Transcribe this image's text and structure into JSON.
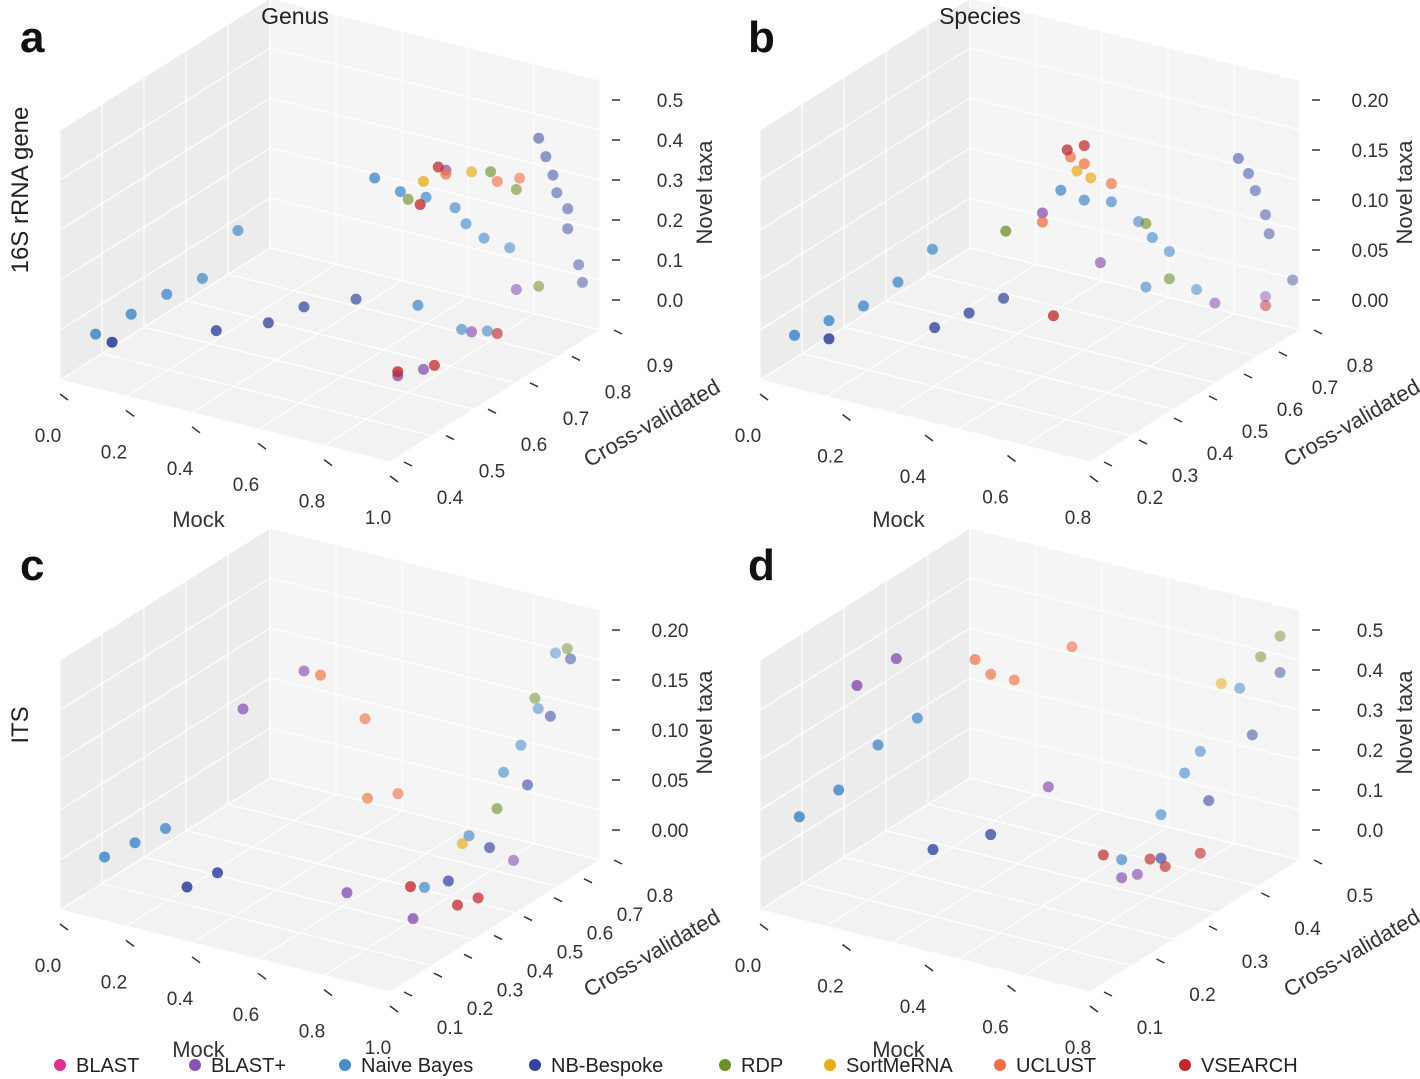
{
  "figure": {
    "column_titles": [
      "Genus",
      "Species"
    ],
    "row_titles": [
      "16S rRNA gene",
      "ITS"
    ]
  },
  "legend": [
    {
      "name": "BLAST",
      "color": "#e0318f"
    },
    {
      "name": "BLAST+",
      "color": "#8a55b2"
    },
    {
      "name": "Naive Bayes",
      "color": "#4a8ccb"
    },
    {
      "name": "NB-Bespoke",
      "color": "#33449e"
    },
    {
      "name": "RDP",
      "color": "#6f8f2a"
    },
    {
      "name": "SortMeRNA",
      "color": "#e7ad1f"
    },
    {
      "name": "UCLUST",
      "color": "#ee7145"
    },
    {
      "name": "VSEARCH",
      "color": "#c0282d"
    }
  ],
  "chart_data": [
    {
      "panel": "a",
      "type": "scatter3d",
      "title": "Genus",
      "row_label": "16S rRNA gene",
      "xlabel": "Mock",
      "ylabel": "Cross-validated",
      "zlabel": "Novel taxa",
      "x_ticks": [
        "0.0",
        "0.2",
        "0.4",
        "0.6",
        "0.8",
        "1.0"
      ],
      "y_ticks": [
        "0.4",
        "0.5",
        "0.6",
        "0.7",
        "0.8",
        "0.9"
      ],
      "z_ticks": [
        "0.0",
        "0.1",
        "0.2",
        "0.3",
        "0.4",
        "0.5"
      ],
      "xlim": [
        0,
        1
      ],
      "ylim": [
        0.4,
        0.95
      ],
      "zlim": [
        0,
        0.5
      ],
      "series": [
        {
          "name": "Naive Bayes",
          "points": [
            [
              0.05,
              0.45,
              0.02
            ],
            [
              0.1,
              0.5,
              0.05
            ],
            [
              0.15,
              0.55,
              0.08
            ],
            [
              0.2,
              0.6,
              0.1
            ],
            [
              0.25,
              0.65,
              0.2
            ],
            [
              0.78,
              0.55,
              0.5
            ],
            [
              0.8,
              0.6,
              0.44
            ],
            [
              0.82,
              0.65,
              0.4
            ],
            [
              0.85,
              0.7,
              0.35
            ],
            [
              0.86,
              0.72,
              0.3
            ],
            [
              0.88,
              0.75,
              0.25
            ],
            [
              0.9,
              0.8,
              0.2
            ],
            [
              0.83,
              0.62,
              0.15
            ],
            [
              0.87,
              0.7,
              0.05
            ],
            [
              0.89,
              0.75,
              0.02
            ]
          ]
        },
        {
          "name": "NB-Bespoke",
          "points": [
            [
              0.1,
              0.45,
              0.01
            ],
            [
              0.3,
              0.55,
              0.02
            ],
            [
              0.4,
              0.6,
              0.03
            ],
            [
              0.45,
              0.65,
              0.05
            ],
            [
              0.55,
              0.7,
              0.06
            ],
            [
              0.93,
              0.85,
              0.45
            ],
            [
              0.94,
              0.86,
              0.4
            ],
            [
              0.95,
              0.87,
              0.35
            ],
            [
              0.95,
              0.88,
              0.3
            ],
            [
              0.96,
              0.9,
              0.25
            ],
            [
              0.96,
              0.9,
              0.2
            ],
            [
              0.97,
              0.92,
              0.1
            ],
            [
              0.97,
              0.93,
              0.05
            ]
          ]
        },
        {
          "name": "BLAST+",
          "points": [
            [
              0.85,
              0.55,
              0.02
            ],
            [
              0.87,
              0.6,
              0.01
            ],
            [
              0.9,
              0.7,
              0.05
            ],
            [
              0.92,
              0.8,
              0.1
            ],
            [
              0.88,
              0.65,
              0.48
            ]
          ]
        },
        {
          "name": "RDP",
          "points": [
            [
              0.65,
              0.75,
              0.3
            ],
            [
              0.9,
              0.75,
              0.42
            ],
            [
              0.92,
              0.8,
              0.35
            ],
            [
              0.93,
              0.85,
              0.08
            ]
          ]
        },
        {
          "name": "SortMeRNA",
          "points": [
            [
              0.87,
              0.6,
              0.48
            ],
            [
              0.9,
              0.7,
              0.45
            ]
          ]
        },
        {
          "name": "UCLUST",
          "points": [
            [
              0.88,
              0.65,
              0.47
            ],
            [
              0.92,
              0.75,
              0.4
            ],
            [
              0.93,
              0.8,
              0.38
            ]
          ]
        },
        {
          "name": "VSEARCH",
          "points": [
            [
              0.88,
              0.63,
              0.5
            ],
            [
              0.86,
              0.6,
              0.42
            ],
            [
              0.85,
              0.55,
              0.03
            ],
            [
              0.88,
              0.62,
              0.01
            ],
            [
              0.92,
              0.75,
              0.02
            ]
          ]
        }
      ]
    },
    {
      "panel": "b",
      "type": "scatter3d",
      "title": "Species",
      "row_label": "",
      "xlabel": "Mock",
      "ylabel": "Cross-validated",
      "zlabel": "Novel taxa",
      "x_ticks": [
        "0.0",
        "0.2",
        "0.4",
        "0.6",
        "0.8"
      ],
      "y_ticks": [
        "0.2",
        "0.3",
        "0.4",
        "0.5",
        "0.6",
        "0.7",
        "0.8"
      ],
      "z_ticks": [
        "0.00",
        "0.05",
        "0.10",
        "0.15",
        "0.20"
      ],
      "xlim": [
        0,
        0.9
      ],
      "ylim": [
        0.2,
        0.85
      ],
      "zlim": [
        0,
        0.22
      ],
      "series": [
        {
          "name": "Naive Bayes",
          "points": [
            [
              0.05,
              0.25,
              0.01
            ],
            [
              0.1,
              0.3,
              0.02
            ],
            [
              0.15,
              0.35,
              0.03
            ],
            [
              0.2,
              0.4,
              0.05
            ],
            [
              0.25,
              0.45,
              0.08
            ],
            [
              0.6,
              0.45,
              0.18
            ],
            [
              0.62,
              0.5,
              0.16
            ],
            [
              0.65,
              0.55,
              0.15
            ],
            [
              0.68,
              0.6,
              0.12
            ],
            [
              0.7,
              0.62,
              0.1
            ],
            [
              0.72,
              0.65,
              0.08
            ],
            [
              0.7,
              0.6,
              0.05
            ],
            [
              0.75,
              0.7,
              0.03
            ]
          ]
        },
        {
          "name": "NB-Bespoke",
          "points": [
            [
              0.1,
              0.3,
              0.0
            ],
            [
              0.3,
              0.4,
              0.01
            ],
            [
              0.35,
              0.45,
              0.02
            ],
            [
              0.4,
              0.5,
              0.03
            ],
            [
              0.82,
              0.75,
              0.17
            ],
            [
              0.83,
              0.77,
              0.15
            ],
            [
              0.84,
              0.78,
              0.13
            ],
            [
              0.85,
              0.8,
              0.1
            ],
            [
              0.86,
              0.8,
              0.08
            ],
            [
              0.88,
              0.85,
              0.02
            ]
          ]
        },
        {
          "name": "BLAST+",
          "points": [
            [
              0.55,
              0.45,
              0.15
            ],
            [
              0.62,
              0.55,
              0.08
            ],
            [
              0.8,
              0.7,
              0.02
            ],
            [
              0.85,
              0.8,
              0.01
            ]
          ]
        },
        {
          "name": "RDP",
          "points": [
            [
              0.45,
              0.45,
              0.12
            ],
            [
              0.7,
              0.6,
              0.12
            ],
            [
              0.72,
              0.65,
              0.05
            ]
          ]
        },
        {
          "name": "SortMeRNA",
          "points": [
            [
              0.6,
              0.5,
              0.19
            ],
            [
              0.62,
              0.52,
              0.18
            ]
          ]
        },
        {
          "name": "UCLUST",
          "points": [
            [
              0.6,
              0.48,
              0.21
            ],
            [
              0.62,
              0.5,
              0.2
            ],
            [
              0.65,
              0.55,
              0.17
            ],
            [
              0.55,
              0.45,
              0.14
            ]
          ]
        },
        {
          "name": "VSEARCH",
          "points": [
            [
              0.6,
              0.47,
              0.22
            ],
            [
              0.62,
              0.5,
              0.22
            ],
            [
              0.58,
              0.45,
              0.04
            ],
            [
              0.85,
              0.8,
              0.0
            ]
          ]
        }
      ]
    },
    {
      "panel": "c",
      "type": "scatter3d",
      "title": "",
      "row_label": "ITS",
      "xlabel": "Mock",
      "ylabel": "Cross-validated",
      "zlabel": "Novel taxa",
      "x_ticks": [
        "0.0",
        "0.2",
        "0.4",
        "0.6",
        "0.8",
        "1.0"
      ],
      "y_ticks": [
        "0.1",
        "0.2",
        "0.3",
        "0.4",
        "0.5",
        "0.6",
        "0.7",
        "0.8"
      ],
      "z_ticks": [
        "0.00",
        "0.05",
        "0.10",
        "0.15",
        "0.20"
      ],
      "xlim": [
        0,
        1
      ],
      "ylim": [
        0.1,
        0.85
      ],
      "zlim": [
        0,
        0.21
      ],
      "series": [
        {
          "name": "Naive Bayes",
          "points": [
            [
              0.05,
              0.2,
              0.01
            ],
            [
              0.1,
              0.25,
              0.02
            ],
            [
              0.15,
              0.3,
              0.03
            ],
            [
              0.85,
              0.4,
              0.01
            ],
            [
              0.9,
              0.5,
              0.05
            ],
            [
              0.92,
              0.6,
              0.1
            ],
            [
              0.94,
              0.7,
              0.15
            ],
            [
              0.95,
              0.75,
              0.2
            ],
            [
              0.93,
              0.65,
              0.12
            ]
          ]
        },
        {
          "name": "NB-Bespoke",
          "points": [
            [
              0.3,
              0.2,
              0.0
            ],
            [
              0.35,
              0.25,
              0.01
            ],
            [
              0.88,
              0.45,
              0.01
            ],
            [
              0.92,
              0.55,
              0.03
            ],
            [
              0.95,
              0.65,
              0.08
            ],
            [
              0.96,
              0.72,
              0.14
            ],
            [
              0.97,
              0.78,
              0.19
            ]
          ]
        },
        {
          "name": "BLAST+",
          "points": [
            [
              0.3,
              0.4,
              0.15
            ],
            [
              0.4,
              0.5,
              0.18
            ],
            [
              0.7,
              0.3,
              0.01
            ],
            [
              0.9,
              0.3,
              0.0
            ],
            [
              0.95,
              0.6,
              0.01
            ]
          ]
        },
        {
          "name": "RDP",
          "points": [
            [
              0.93,
              0.7,
              0.16
            ],
            [
              0.96,
              0.78,
              0.2
            ],
            [
              0.9,
              0.6,
              0.06
            ]
          ]
        },
        {
          "name": "SortMeRNA",
          "points": [
            [
              0.88,
              0.5,
              0.04
            ]
          ]
        },
        {
          "name": "UCLUST",
          "points": [
            [
              0.45,
              0.5,
              0.18
            ],
            [
              0.5,
              0.6,
              0.12
            ],
            [
              0.55,
              0.55,
              0.05
            ],
            [
              0.6,
              0.6,
              0.05
            ]
          ]
        },
        {
          "name": "VSEARCH",
          "points": [
            [
              0.85,
              0.35,
              0.02
            ],
            [
              0.95,
              0.4,
              0.0
            ],
            [
              0.97,
              0.45,
              0.0
            ]
          ]
        }
      ]
    },
    {
      "panel": "d",
      "type": "scatter3d",
      "title": "",
      "row_label": "",
      "xlabel": "Mock",
      "ylabel": "Cross-validated",
      "zlabel": "Novel taxa",
      "x_ticks": [
        "0.0",
        "0.2",
        "0.4",
        "0.6",
        "0.8"
      ],
      "y_ticks": [
        "0.1",
        "0.2",
        "0.3",
        "0.4",
        "0.5"
      ],
      "z_ticks": [
        "0.0",
        "0.1",
        "0.2",
        "0.3",
        "0.4",
        "0.5"
      ],
      "xlim": [
        0,
        0.9
      ],
      "ylim": [
        0.05,
        0.55
      ],
      "zlim": [
        0,
        0.55
      ],
      "series": [
        {
          "name": "Naive Bayes",
          "points": [
            [
              0.05,
              0.1,
              0.15
            ],
            [
              0.1,
              0.15,
              0.2
            ],
            [
              0.15,
              0.2,
              0.3
            ],
            [
              0.2,
              0.25,
              0.35
            ],
            [
              0.7,
              0.3,
              0.05
            ],
            [
              0.75,
              0.35,
              0.15
            ],
            [
              0.8,
              0.4,
              0.3
            ],
            [
              0.85,
              0.45,
              0.45
            ],
            [
              0.78,
              0.38,
              0.25
            ]
          ]
        },
        {
          "name": "NB-Bespoke",
          "points": [
            [
              0.3,
              0.2,
              0.05
            ],
            [
              0.4,
              0.25,
              0.08
            ],
            [
              0.75,
              0.35,
              0.03
            ],
            [
              0.8,
              0.42,
              0.15
            ],
            [
              0.85,
              0.48,
              0.3
            ],
            [
              0.88,
              0.52,
              0.45
            ]
          ]
        },
        {
          "name": "BLAST+",
          "points": [
            [
              0.15,
              0.15,
              0.5
            ],
            [
              0.2,
              0.2,
              0.55
            ],
            [
              0.5,
              0.3,
              0.2
            ],
            [
              0.7,
              0.3,
              0.0
            ],
            [
              0.72,
              0.32,
              0.0
            ]
          ]
        },
        {
          "name": "RDP",
          "points": [
            [
              0.85,
              0.5,
              0.5
            ],
            [
              0.88,
              0.52,
              0.55
            ]
          ]
        },
        {
          "name": "SortMeRNA",
          "points": [
            [
              0.8,
              0.45,
              0.45
            ]
          ]
        },
        {
          "name": "UCLUST",
          "points": [
            [
              0.3,
              0.3,
              0.5
            ],
            [
              0.32,
              0.32,
              0.45
            ],
            [
              0.35,
              0.35,
              0.42
            ],
            [
              0.45,
              0.4,
              0.5
            ]
          ]
        },
        {
          "name": "VSEARCH",
          "points": [
            [
              0.65,
              0.3,
              0.05
            ],
            [
              0.72,
              0.35,
              0.02
            ],
            [
              0.75,
              0.36,
              0.0
            ],
            [
              0.8,
              0.4,
              0.02
            ]
          ]
        }
      ]
    }
  ]
}
